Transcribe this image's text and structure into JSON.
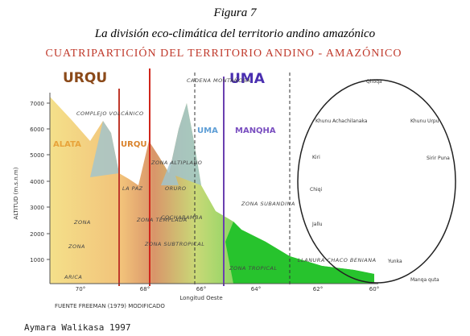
{
  "figure": {
    "label": "Figura 7",
    "caption": "La división eco-climática del territorio andino amazónico",
    "heading": "CUATRIPARTICIÓN DEL TERRITORIO ANDINO - AMAZÓNICO"
  },
  "regions": [
    "URQU",
    "UMA",
    "ALATA",
    "URQU",
    "UMA",
    "MANQHA"
  ],
  "labels": [
    "CADENA MONTAÑOSA",
    "COMPLEJO VOLCÁNICO",
    "ZONA ALTIPLANO",
    "LA PAZ",
    "ORURO",
    "COCHABAMBA",
    "ZONA TEMPLADA",
    "ZONA SUBTROPICAL",
    "ZONA TROPICAL",
    "ZONA SUBANDINA",
    "ZONA",
    "ZONA",
    "ARICA",
    "LLANURA CHACO BENIANA"
  ],
  "axis": {
    "y_title": "ALTITUD (m.s.n.m)",
    "y_ticks": [
      "7000",
      "6000",
      "5000",
      "4000",
      "3000",
      "2000",
      "1000"
    ],
    "x_title": "Longitud Oeste",
    "x_ticks": [
      "70°",
      "68°",
      "66°",
      "64°",
      "62°",
      "60°"
    ]
  },
  "cycle": [
    "Qhoqa",
    "Khunu Achachilanaka",
    "Khunu Urpu",
    "Sirir Puna",
    "Kiri",
    "Chiqi",
    "Jallu",
    "Yunka",
    "Manqa quta"
  ],
  "source": "FUENTE FREEMAN (1979) MODIFICADO",
  "credit": "Aymara Walikasa 1997"
}
